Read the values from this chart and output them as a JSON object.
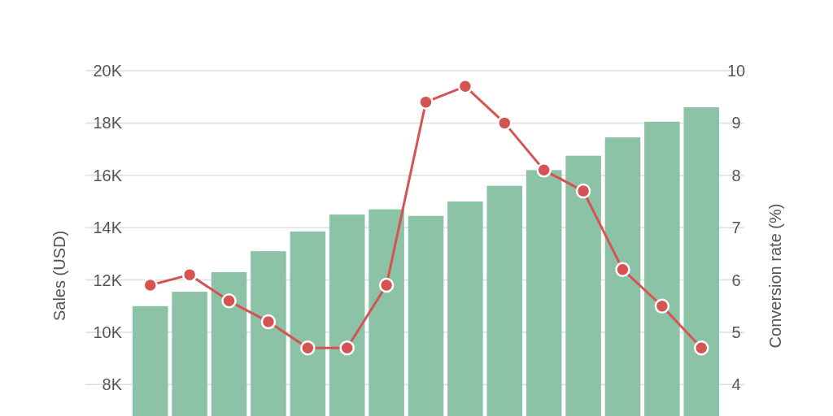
{
  "chart_data": {
    "type": "bar",
    "categories": [
      null,
      null,
      null,
      null,
      null,
      null,
      null,
      null,
      null,
      null,
      null,
      null,
      null,
      null,
      null
    ],
    "ylabel": "Sales (USD)",
    "y2label": "Conversion rate (%)",
    "series": [
      {
        "color": "#8cc2a5",
        "values": [
          11000,
          11550,
          12300,
          13100,
          13850,
          14500,
          14700,
          14450,
          15000,
          15600,
          16200,
          16750,
          17450,
          18050,
          18600
        ]
      },
      {
        "type": "line",
        "axis": "y2",
        "color": "#d65353",
        "marker": "circle",
        "line_style": "solid",
        "values": [
          5.9,
          6.1,
          5.6,
          5.2,
          4.7,
          4.7,
          5.9,
          9.4,
          9.7,
          9.0,
          8.1,
          7.7,
          6.2,
          5.5,
          4.7
        ]
      }
    ],
    "ylim": [
      6800,
      20000
    ],
    "yticks": [
      {
        "value": 8000,
        "label": "8K"
      },
      {
        "value": 10000,
        "label": "10K"
      },
      {
        "value": 12000,
        "label": "12K"
      },
      {
        "value": 14000,
        "label": "14K"
      },
      {
        "value": 16000,
        "label": "16K"
      },
      {
        "value": 18000,
        "label": "18K"
      },
      {
        "value": 20000,
        "label": "20K"
      }
    ],
    "y2lim": [
      3.4,
      10
    ],
    "y2ticks": [
      4,
      5,
      6,
      7,
      8,
      9,
      10
    ],
    "grid": "y"
  }
}
